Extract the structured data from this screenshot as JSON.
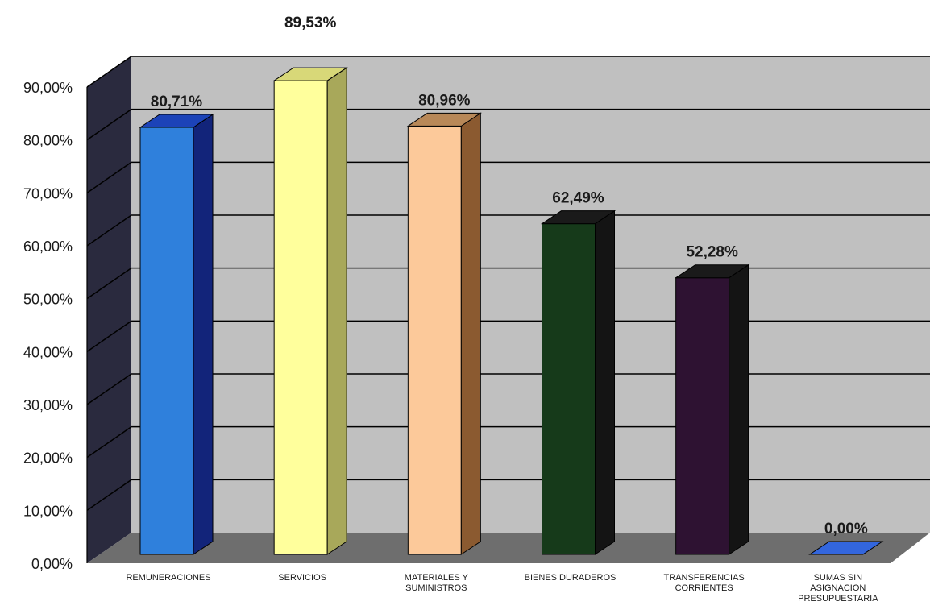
{
  "chart_data": {
    "type": "bar",
    "style": "3d-column",
    "title": "",
    "xlabel": "",
    "ylabel": "",
    "ylim": [
      0,
      90
    ],
    "yticks": [
      "0,00%",
      "10,00%",
      "20,00%",
      "30,00%",
      "40,00%",
      "50,00%",
      "60,00%",
      "70,00%",
      "80,00%",
      "90,00%"
    ],
    "grid": true,
    "legend": "none",
    "categories": [
      [
        "REMUNERACIONES"
      ],
      [
        "SERVICIOS"
      ],
      [
        "MATERIALES Y",
        "SUMINISTROS"
      ],
      [
        "BIENES DURADEROS"
      ],
      [
        "TRANSFERENCIAS",
        "CORRIENTES"
      ],
      [
        "SUMAS SIN",
        "ASIGNACION",
        "PRESUPUESTARIA"
      ]
    ],
    "values": [
      80.71,
      89.53,
      80.96,
      62.49,
      52.28,
      0.0
    ],
    "data_labels": [
      "80,71%",
      "89,53%",
      "80,96%",
      "62,49%",
      "52,28%",
      "0,00%"
    ],
    "colors": {
      "bars_front": [
        "#2f80dc",
        "#ffff9c",
        "#fcc99a",
        "#163a1a",
        "#2e1232",
        "#1f4cc0"
      ],
      "bars_side": [
        "#12247a",
        "#a8a85a",
        "#8b5a30",
        "#141414",
        "#141414",
        "#1a2c7a"
      ],
      "bars_top": [
        "#1c43b8",
        "#d8d878",
        "#b88858",
        "#1a1a1a",
        "#1a1a1a",
        "#3366dd"
      ],
      "back_wall": "#c0c0c0",
      "side_wall": "#2a2a3e",
      "floor": "#6e6e6e",
      "gridline": "#000000"
    }
  }
}
